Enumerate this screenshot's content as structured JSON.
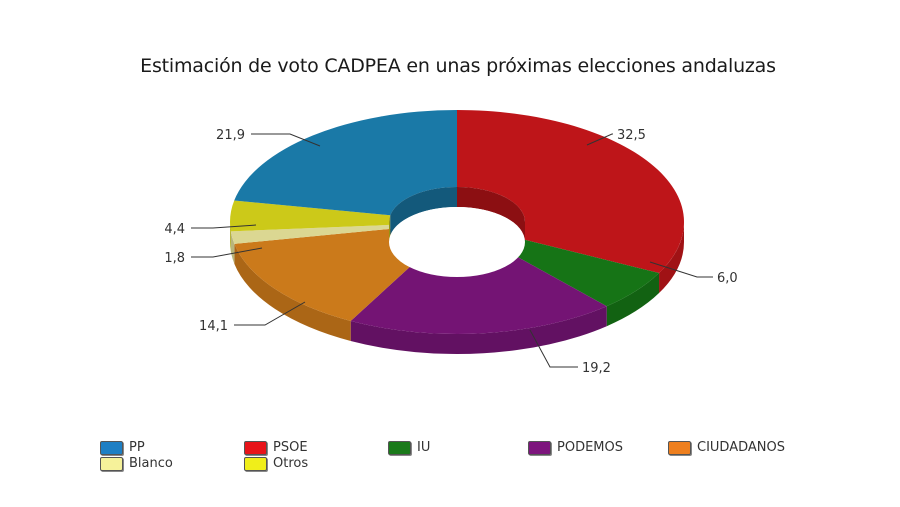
{
  "chart_data": {
    "type": "pie",
    "subtype": "doughnut-3d",
    "title": "Estimación de voto CADPEA en unas próximas elecciones andaluzas",
    "categories": [
      "PSOE",
      "IU",
      "PODEMOS",
      "CIUDADANOS",
      "Blanco",
      "Otros",
      "PP"
    ],
    "values": [
      32.5,
      6.0,
      19.2,
      14.1,
      1.8,
      4.4,
      21.9
    ],
    "value_labels": [
      "32,5",
      "6,0",
      "19,2",
      "14,1",
      "1,8",
      "4,4",
      "21,9"
    ],
    "colors": {
      "PP": "#1b7fb0",
      "PSOE": "#c8161a",
      "IU": "#177a17",
      "PODEMOS": "#7a157a",
      "CIUDADANOS": "#d6801c",
      "Blanco": "#e6e29a",
      "Otros": "#d7d41a"
    },
    "legend": [
      "PP",
      "PSOE",
      "IU",
      "PODEMOS",
      "CIUDADANOS",
      "Blanco",
      "Otros"
    ],
    "legend_position": "bottom"
  },
  "title": "Estimación de voto CADPEA en unas próximas elecciones andaluzas",
  "legend": [
    {
      "label": "PP",
      "color": "#1e7fc4"
    },
    {
      "label": "PSOE",
      "color": "#e8141a"
    },
    {
      "label": "IU",
      "color": "#1a7a1a"
    },
    {
      "label": "PODEMOS",
      "color": "#7d157d"
    },
    {
      "label": "CIUDADANOS",
      "color": "#ee7f1e"
    },
    {
      "label": "Blanco",
      "color": "#f6f29a"
    },
    {
      "label": "Otros",
      "color": "#f0ee1a"
    }
  ]
}
